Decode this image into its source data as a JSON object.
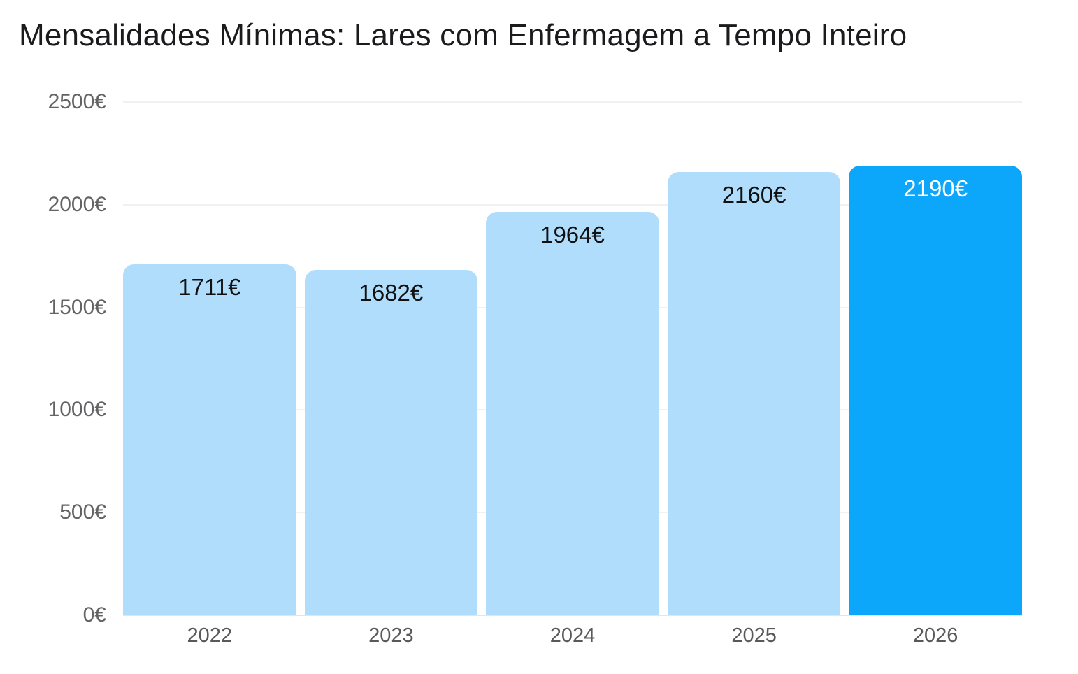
{
  "chart_data": {
    "type": "bar",
    "title": "Mensalidades Mínimas: Lares com Enfermagem a Tempo Inteiro",
    "xlabel": "",
    "ylabel": "",
    "categories": [
      "2022",
      "2023",
      "2024",
      "2025",
      "2026"
    ],
    "values": [
      1711,
      1682,
      1964,
      2160,
      2190
    ],
    "value_labels": [
      "1711€",
      "1682€",
      "1964€",
      "2160€",
      "2190€"
    ],
    "ylim": [
      0,
      2500
    ],
    "yticks": [
      0,
      500,
      1000,
      1500,
      2000,
      2500
    ],
    "ytick_labels": [
      "0€",
      "500€",
      "1000€",
      "1500€",
      "2000€",
      "2500€"
    ],
    "grid": "horizontal-major-only",
    "legend": "none",
    "highlight_category": "2026",
    "colors": {
      "background": "#FFFFFF",
      "bar_default": "#AFDDFB",
      "bar_highlight": "#0CA6FB",
      "value_label_on_default": "#111111",
      "value_label_on_highlight": "#FFFFFF",
      "gridline": "#F1F1F2",
      "baseline": "#E5E5E6",
      "ytick_text": "#636366",
      "xtick_text": "#58595B",
      "title_text": "#1B1B1D"
    }
  }
}
